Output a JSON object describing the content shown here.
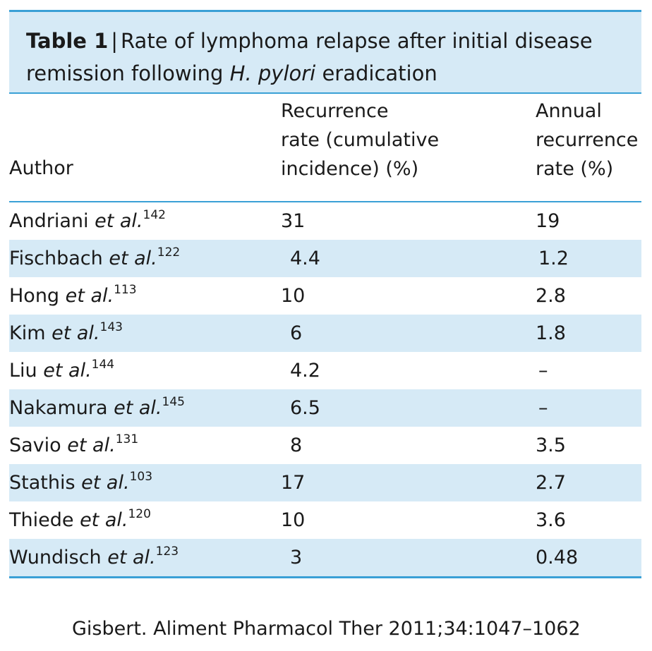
{
  "table": {
    "caption_label": "Table 1",
    "caption_separator": "|",
    "caption_text_1": "Rate of lymphoma relapse after initial disease remission following ",
    "caption_italic": "H. pylori",
    "caption_text_2": " eradication",
    "headers": {
      "author": "Author",
      "recurrence_1": "Recurrence",
      "recurrence_2": "rate (cumulative",
      "recurrence_3": "incidence) (%)",
      "annual_1": "Annual",
      "annual_2": "recurrence",
      "annual_3": "rate (%)"
    },
    "rows": [
      {
        "name": "Andriani",
        "etal": "et al.",
        "ref": "142",
        "recurrence": "31",
        "annual": "19"
      },
      {
        "name": "Fischbach",
        "etal": "et al.",
        "ref": "122",
        "recurrence": "4.4",
        "annual": "1.2"
      },
      {
        "name": "Hong",
        "etal": "et al.",
        "ref": "113",
        "recurrence": "10",
        "annual": "2.8"
      },
      {
        "name": "Kim",
        "etal": "et al.",
        "ref": "143",
        "recurrence": "6",
        "annual": "1.8"
      },
      {
        "name": "Liu",
        "etal": "et al.",
        "ref": "144",
        "recurrence": "4.2",
        "annual": "–"
      },
      {
        "name": "Nakamura",
        "etal": "et al.",
        "ref": "145",
        "recurrence": "6.5",
        "annual": "–"
      },
      {
        "name": "Savio",
        "etal": "et al.",
        "ref": "131",
        "recurrence": "8",
        "annual": "3.5"
      },
      {
        "name": "Stathis",
        "etal": "et al.",
        "ref": "103",
        "recurrence": "17",
        "annual": "2.7"
      },
      {
        "name": "Thiede",
        "etal": "et al.",
        "ref": "120",
        "recurrence": "10",
        "annual": "3.6"
      },
      {
        "name": "Wundisch",
        "etal": "et al.",
        "ref": "123",
        "recurrence": "3",
        "annual": "0.48"
      }
    ]
  },
  "citation": "Gisbert. Aliment Pharmacol Ther 2011;34:1047–1062",
  "colors": {
    "rule": "#3aa0d6",
    "band": "#d6eaf6"
  }
}
